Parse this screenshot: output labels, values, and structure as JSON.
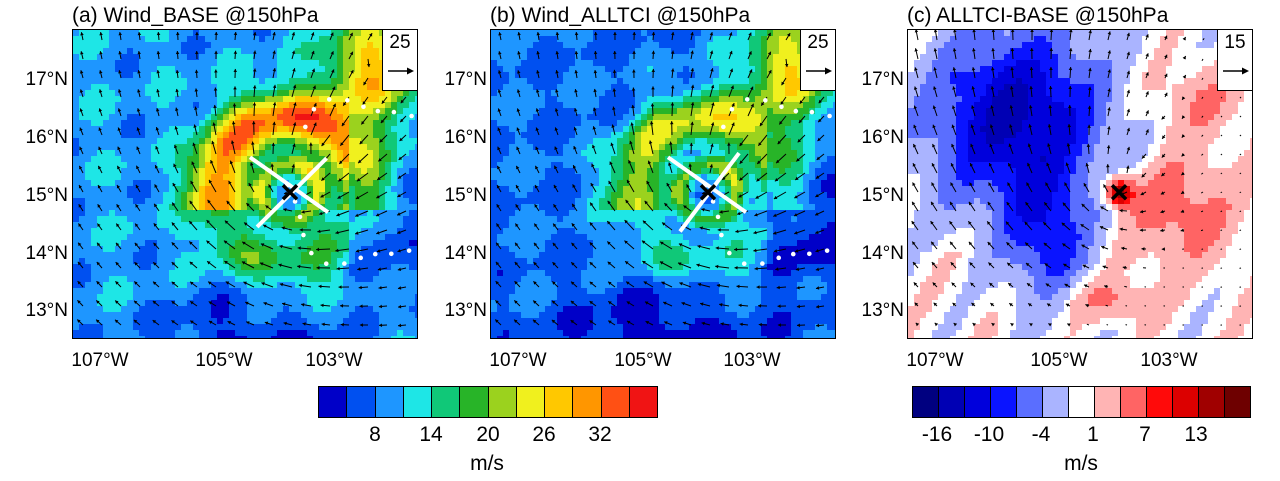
{
  "panels": [
    {
      "id": "a",
      "title": "(a) Wind_BASE @150hPa",
      "ref_vector": "25",
      "center_lon": -104.1,
      "center_lat": 15.1,
      "lat_labels": [
        "17°N",
        "16°N",
        "15°N",
        "14°N",
        "13°N"
      ],
      "lon_labels": [
        "107°W",
        "105°W",
        "103°W"
      ]
    },
    {
      "id": "b",
      "title": "(b) Wind_ALLTCI @150hPa",
      "ref_vector": "25",
      "center_lon": -104.1,
      "center_lat": 15.1,
      "lat_labels": [
        "17°N",
        "16°N",
        "15°N",
        "14°N",
        "13°N"
      ],
      "lon_labels": [
        "107°W",
        "105°W",
        "103°W"
      ]
    },
    {
      "id": "c",
      "title": "(c) ALLTCI-BASE @150hPa",
      "ref_vector": "15",
      "center_lon": -104.2,
      "center_lat": 15.1,
      "lat_labels": [
        "17°N",
        "16°N",
        "15°N",
        "14°N",
        "13°N"
      ],
      "lon_labels": [
        "107°W",
        "105°W",
        "103°W"
      ]
    }
  ],
  "colorbar_wind": {
    "colors": [
      "#0000c8",
      "#0050f0",
      "#1e96ff",
      "#1ee6e6",
      "#10c878",
      "#28b428",
      "#9bd21e",
      "#f0f01e",
      "#ffc800",
      "#ff9600",
      "#ff5014",
      "#f01414"
    ],
    "ticks": [
      "8",
      "14",
      "20",
      "26",
      "32"
    ],
    "unit": "m/s"
  },
  "colorbar_diff": {
    "colors": [
      "#000080",
      "#0000b4",
      "#0000dc",
      "#0a14ff",
      "#5a6eff",
      "#aab4ff",
      "#ffffff",
      "#ffb4b4",
      "#ff6464",
      "#ff0a0a",
      "#dc0000",
      "#a00000",
      "#6e0000"
    ],
    "ticks": [
      "-16",
      "-10",
      "-4",
      "1",
      "7",
      "13"
    ],
    "unit": "m/s"
  }
}
